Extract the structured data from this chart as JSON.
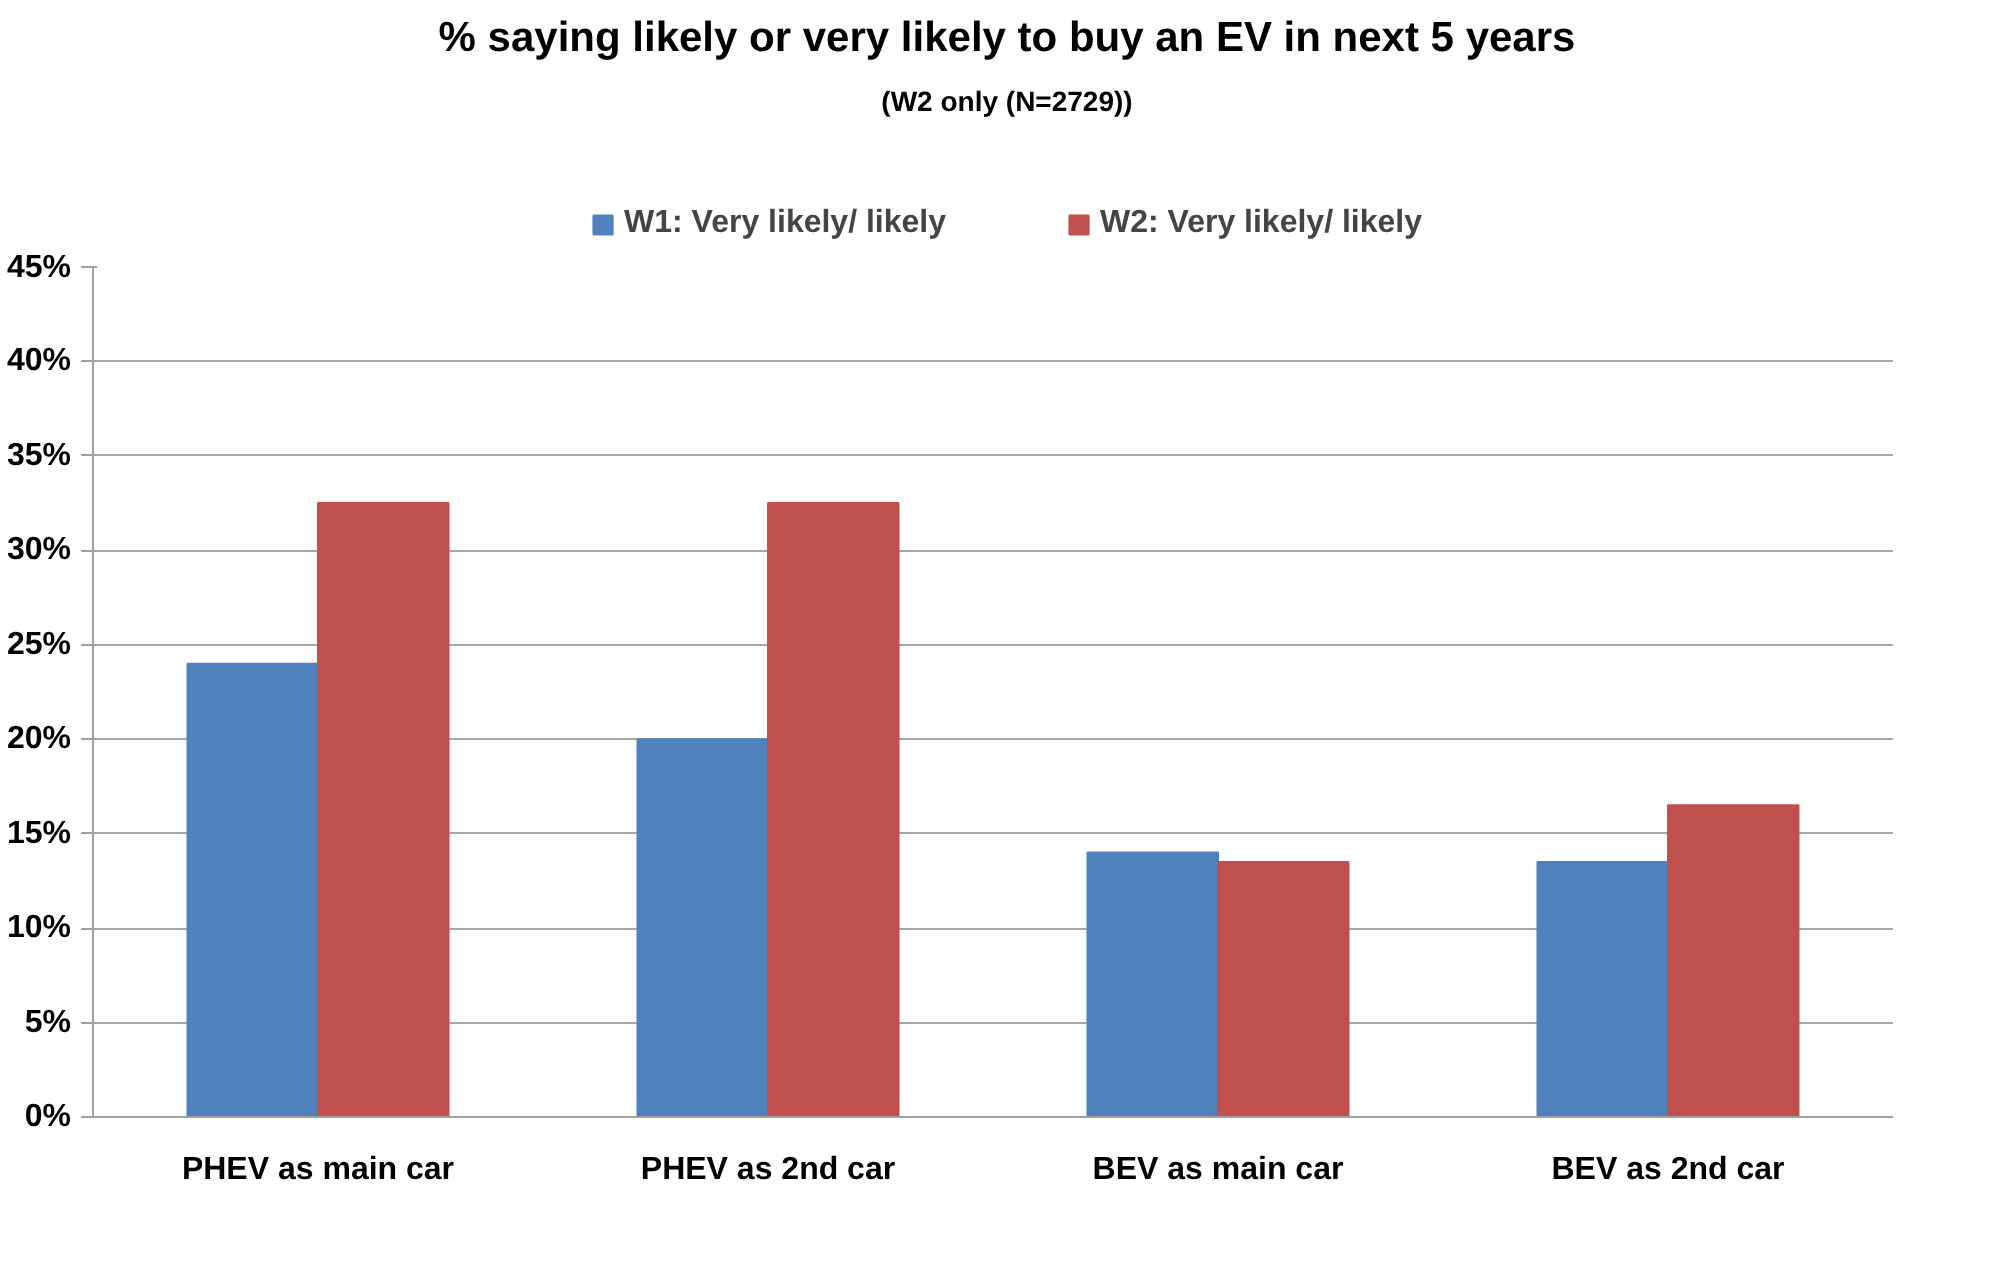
{
  "chart_data": {
    "type": "bar",
    "title": "% saying likely or very likely to buy an EV in next 5 years",
    "subtitle": "(W2 only (N=2729))",
    "categories": [
      "PHEV as main car",
      "PHEV as 2nd car",
      "BEV as main car",
      "BEV as 2nd car"
    ],
    "series": [
      {
        "name": "W1: Very likely/ likely",
        "color": "#4f81bd",
        "values": [
          24,
          20,
          14,
          13.5
        ]
      },
      {
        "name": "W2: Very likely/ likely",
        "color": "#c0504d",
        "values": [
          32.5,
          32.5,
          13.5,
          16.5
        ]
      }
    ],
    "ylim": [
      0,
      45
    ],
    "yticks": [
      {
        "value": 0,
        "label": "0%"
      },
      {
        "value": 5,
        "label": "5%"
      },
      {
        "value": 10,
        "label": "10%"
      },
      {
        "value": 15,
        "label": "15%"
      },
      {
        "value": 20,
        "label": "20%"
      },
      {
        "value": 25,
        "label": "25%"
      },
      {
        "value": 30,
        "label": "30%"
      },
      {
        "value": 35,
        "label": "35%"
      },
      {
        "value": 40,
        "label": "40%"
      },
      {
        "value": 45,
        "label": "45%"
      }
    ],
    "grid": "y",
    "legend": "top"
  }
}
